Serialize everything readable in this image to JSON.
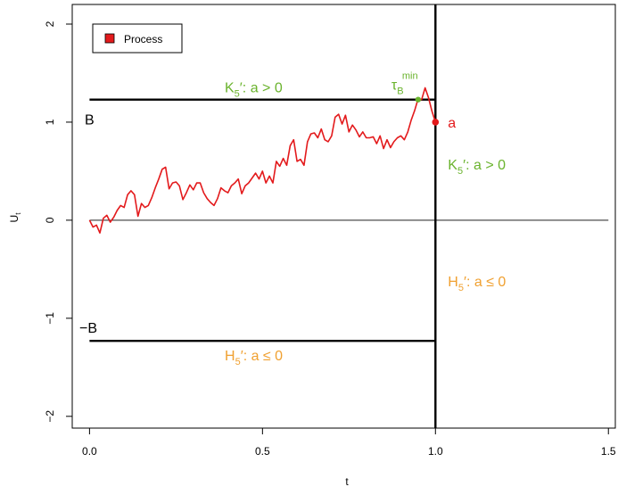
{
  "chart_data": {
    "type": "line",
    "title": "",
    "xlabel": "t",
    "ylabel": "U",
    "ylabel_sub": "t",
    "xlim": [
      -0.05,
      1.52
    ],
    "ylim": [
      -2.12,
      2.2
    ],
    "x_ticks": [
      0.0,
      0.5,
      1.0,
      1.5
    ],
    "x_tick_labels": [
      "0.0",
      "0.5",
      "1.0",
      "1.5"
    ],
    "y_ticks": [
      -2,
      -1,
      0,
      1,
      2
    ],
    "y_tick_labels": [
      "−2",
      "−1",
      "0",
      "1",
      "2"
    ],
    "legend": {
      "position": "top-left",
      "entries": [
        {
          "label": "Process",
          "color": "#e31a1c"
        }
      ]
    },
    "colors": {
      "process": "#e31a1c",
      "green": "#6ab32d",
      "orange": "#f0a030",
      "axis": "#000000"
    },
    "series": [
      {
        "name": "Process",
        "x": [
          0.0,
          0.01,
          0.02,
          0.03,
          0.04,
          0.05,
          0.06,
          0.07,
          0.08,
          0.09,
          0.1,
          0.11,
          0.12,
          0.13,
          0.14,
          0.15,
          0.16,
          0.17,
          0.18,
          0.19,
          0.2,
          0.21,
          0.22,
          0.23,
          0.24,
          0.25,
          0.26,
          0.27,
          0.28,
          0.29,
          0.3,
          0.31,
          0.32,
          0.33,
          0.34,
          0.35,
          0.36,
          0.37,
          0.38,
          0.39,
          0.4,
          0.41,
          0.42,
          0.43,
          0.44,
          0.45,
          0.46,
          0.47,
          0.48,
          0.49,
          0.5,
          0.51,
          0.52,
          0.53,
          0.54,
          0.55,
          0.56,
          0.57,
          0.58,
          0.59,
          0.6,
          0.61,
          0.62,
          0.63,
          0.64,
          0.65,
          0.66,
          0.67,
          0.68,
          0.69,
          0.7,
          0.71,
          0.72,
          0.73,
          0.74,
          0.75,
          0.76,
          0.77,
          0.78,
          0.79,
          0.8,
          0.81,
          0.82,
          0.83,
          0.84,
          0.85,
          0.86,
          0.87,
          0.88,
          0.89,
          0.9,
          0.91,
          0.92,
          0.93,
          0.94,
          0.95,
          0.96,
          0.97,
          0.98,
          0.99,
          1.0
        ],
        "y": [
          0.0,
          -0.07,
          -0.05,
          -0.13,
          0.02,
          0.05,
          -0.02,
          0.03,
          0.1,
          0.15,
          0.13,
          0.26,
          0.3,
          0.26,
          0.04,
          0.17,
          0.13,
          0.15,
          0.23,
          0.33,
          0.42,
          0.52,
          0.54,
          0.32,
          0.38,
          0.39,
          0.35,
          0.21,
          0.28,
          0.36,
          0.31,
          0.38,
          0.38,
          0.28,
          0.22,
          0.18,
          0.15,
          0.22,
          0.33,
          0.3,
          0.28,
          0.35,
          0.38,
          0.42,
          0.27,
          0.35,
          0.38,
          0.43,
          0.48,
          0.42,
          0.5,
          0.38,
          0.45,
          0.38,
          0.6,
          0.55,
          0.63,
          0.56,
          0.76,
          0.82,
          0.6,
          0.62,
          0.56,
          0.8,
          0.88,
          0.89,
          0.84,
          0.93,
          0.82,
          0.8,
          0.86,
          1.05,
          1.08,
          0.98,
          1.07,
          0.9,
          0.97,
          0.92,
          0.85,
          0.9,
          0.84,
          0.84,
          0.85,
          0.78,
          0.86,
          0.73,
          0.82,
          0.74,
          0.8,
          0.84,
          0.86,
          0.82,
          0.9,
          1.02,
          1.12,
          1.24,
          1.23,
          1.35,
          1.25,
          1.11,
          1.0
        ]
      }
    ],
    "reference_lines": [
      {
        "kind": "hline",
        "y": 0,
        "x_from": 0.0,
        "x_to": 1.5,
        "style": "thin"
      },
      {
        "kind": "hline",
        "y": 1.23,
        "x_from": 0.0,
        "x_to": 1.0,
        "style": "thick"
      },
      {
        "kind": "hline",
        "y": -1.23,
        "x_from": 0.0,
        "x_to": 1.0,
        "style": "thick"
      },
      {
        "kind": "vline",
        "x": 1.0,
        "style": "thick"
      }
    ],
    "points": [
      {
        "name": "a",
        "x": 1.0,
        "y": 1.0,
        "color": "#e31a1c"
      },
      {
        "name": "tau",
        "x": 0.95,
        "y": 1.23,
        "color": "#6ab32d"
      }
    ],
    "annotations": {
      "B": "B",
      "neg_B": "−B",
      "a": "a",
      "tau_base": "τ",
      "tau_sub": "B",
      "tau_sup": "min",
      "K_main": "K",
      "K_sub": "5",
      "K_rest": "′: a > 0",
      "H_main": "H",
      "H_sub": "5",
      "H_rest": "′: a ≤ 0"
    }
  }
}
